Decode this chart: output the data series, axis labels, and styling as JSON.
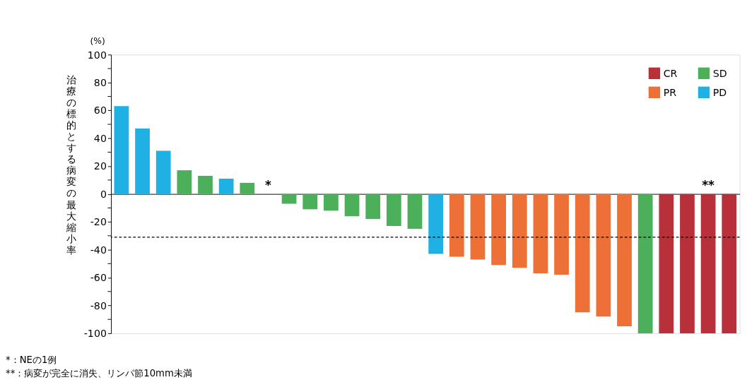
{
  "chart_data": {
    "type": "bar",
    "ylabel": "治療の標的とする病変の最大縮小率",
    "categories": [
      null,
      null,
      null,
      null,
      null,
      null,
      null,
      null,
      null,
      null,
      null,
      null,
      null,
      null,
      null,
      null,
      null,
      null,
      null,
      null,
      null,
      null,
      null,
      null,
      null,
      null,
      null,
      null,
      null,
      null
    ],
    "series": [
      {
        "name": "CR",
        "color": "#b8313a",
        "values": [
          null,
          null,
          null,
          null,
          null,
          null,
          null,
          null,
          null,
          null,
          null,
          null,
          null,
          null,
          null,
          null,
          null,
          null,
          null,
          null,
          null,
          null,
          null,
          null,
          null,
          null,
          -100,
          -100,
          -100,
          -100
        ]
      },
      {
        "name": "PR",
        "color": "#ed7036",
        "values": [
          null,
          null,
          null,
          null,
          null,
          null,
          null,
          null,
          null,
          null,
          null,
          null,
          null,
          null,
          null,
          null,
          -45,
          -47,
          -51,
          -53,
          -57,
          -58,
          -85,
          -88,
          -95,
          null,
          null,
          null,
          null,
          null
        ]
      },
      {
        "name": "SD",
        "color": "#4cb05a",
        "values": [
          null,
          null,
          null,
          17,
          13,
          null,
          8,
          null,
          -7,
          -11,
          -12,
          -16,
          -18,
          -23,
          -25,
          null,
          null,
          null,
          null,
          null,
          null,
          null,
          null,
          null,
          null,
          -100,
          null,
          null,
          null,
          null
        ]
      },
      {
        "name": "PD",
        "color": "#1fb0e4",
        "values": [
          63,
          47,
          31,
          null,
          null,
          11,
          null,
          null,
          null,
          null,
          null,
          null,
          null,
          null,
          null,
          -43,
          null,
          null,
          null,
          null,
          null,
          null,
          null,
          null,
          null,
          null,
          null,
          null,
          null,
          null
        ]
      }
    ],
    "ylim": [
      -100,
      100
    ],
    "yticks": [
      -100,
      {
        "value": -90,
        "label": null
      },
      -80,
      {
        "value": -70,
        "label": null
      },
      -60,
      {
        "value": -50,
        "label": null
      },
      -40,
      {
        "value": -30,
        "label": null
      },
      -20,
      {
        "value": -10,
        "label": null
      },
      0,
      {
        "value": 10,
        "label": null
      },
      20,
      {
        "value": 30,
        "label": null
      },
      40,
      {
        "value": 50,
        "label": null
      },
      60,
      {
        "value": 70,
        "label": null
      },
      80,
      {
        "value": 90,
        "label": null
      },
      100
    ],
    "ref_lines": [
      {
        "axis": "y",
        "value": -31,
        "color": "#000000",
        "line_style": "dashed"
      }
    ],
    "annotations": [
      "(%)",
      "*",
      "**",
      "*：NEの1例",
      "**：病変が完全に消失、リンパ節10mm未満"
    ],
    "legend": "top right",
    "grid": false,
    "tick_labels": "y"
  }
}
